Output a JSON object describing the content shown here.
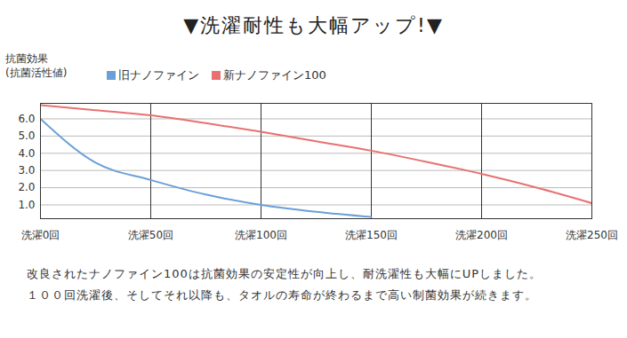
{
  "chart_data": {
    "type": "line",
    "title": "▼洗濯耐性も大幅アップ!▼",
    "ylabel": "抗菌効果\n(抗菌活性値)",
    "x": [
      0,
      25,
      50,
      75,
      100,
      125,
      150,
      175,
      200,
      225,
      250
    ],
    "series": [
      {
        "name": "旧ナノファイン",
        "color": "#6a9fd8",
        "values": [
          6.0,
          3.45,
          2.45,
          1.6,
          1.0,
          0.6,
          0.3,
          null,
          null,
          null,
          null
        ]
      },
      {
        "name": "新ナノファイン100",
        "color": "#e8716f",
        "values": [
          6.8,
          6.5,
          6.2,
          5.75,
          5.25,
          4.7,
          4.15,
          3.5,
          2.8,
          2.0,
          1.1
        ]
      }
    ],
    "xlim": [
      0,
      250
    ],
    "xticks": [
      {
        "value": 0,
        "label": "洗濯0回"
      },
      {
        "value": 50,
        "label": "洗濯50回"
      },
      {
        "value": 100,
        "label": "洗濯100回"
      },
      {
        "value": 150,
        "label": "洗濯150回"
      },
      {
        "value": 200,
        "label": "洗濯200回"
      },
      {
        "value": 250,
        "label": "洗濯250回"
      }
    ],
    "ylim": [
      0.2,
      6.9
    ],
    "yticks": [
      {
        "value": 1,
        "label": "1.0"
      },
      {
        "value": 2,
        "label": "2.0"
      },
      {
        "value": 3,
        "label": "3.0"
      },
      {
        "value": 4,
        "label": "4.0"
      },
      {
        "value": 5,
        "label": "5.0"
      },
      {
        "value": 6,
        "label": "6.0"
      }
    ],
    "grid": true,
    "caption": [
      "改良されたナノファイン100は抗菌効果の安定性が向上し、耐洗濯性も大幅にUPしました。",
      "１００回洗濯後、そしてそれ以降も、タオルの寿命が終わるまで高い制菌効果が続きます。"
    ]
  }
}
